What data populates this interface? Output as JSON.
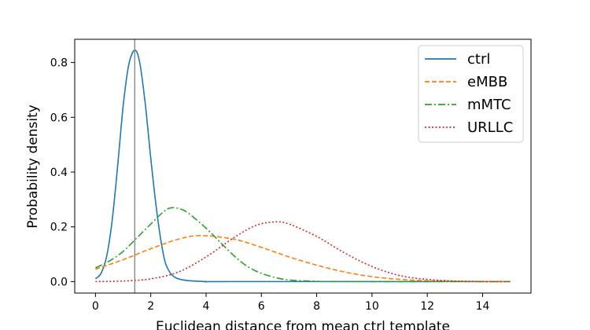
{
  "chart_data": {
    "type": "line",
    "xlabel": "Euclidean distance from mean ctrl template",
    "ylabel": "Probability density",
    "xlim": [
      -0.75,
      15.75
    ],
    "ylim": [
      -0.042,
      0.885
    ],
    "xticks": [
      0,
      2,
      4,
      6,
      8,
      10,
      12,
      14
    ],
    "yticks": [
      0.0,
      0.2,
      0.4,
      0.6,
      0.8
    ],
    "grid": false,
    "legend_position": "top-right",
    "vline": {
      "x": 1.42,
      "color": "#808080"
    },
    "series": [
      {
        "name": "ctrl",
        "color": "#1f77b4",
        "style": "solid",
        "x": [
          0,
          0.2,
          0.4,
          0.6,
          0.8,
          1.0,
          1.2,
          1.42,
          1.6,
          1.8,
          2.0,
          2.2,
          2.4,
          2.6,
          3.0,
          4,
          5,
          15
        ],
        "values": [
          0.01,
          0.03,
          0.09,
          0.22,
          0.42,
          0.64,
          0.79,
          0.845,
          0.8,
          0.65,
          0.45,
          0.27,
          0.13,
          0.05,
          0.01,
          0.0,
          0.0,
          0.0
        ]
      },
      {
        "name": "eMBB",
        "color": "#ff7f0e",
        "style": "dashed",
        "x": [
          0,
          1,
          2,
          3,
          3.8,
          5,
          6,
          7,
          8,
          9,
          10,
          11,
          12,
          13,
          15
        ],
        "values": [
          0.045,
          0.08,
          0.12,
          0.155,
          0.168,
          0.155,
          0.125,
          0.09,
          0.06,
          0.035,
          0.018,
          0.008,
          0.003,
          0.001,
          0.0
        ]
      },
      {
        "name": "mMTC",
        "color": "#2ca02c",
        "style": "dashdot",
        "x": [
          0,
          0.5,
          1,
          1.5,
          2,
          2.5,
          2.8,
          3.2,
          3.6,
          4,
          4.5,
          5,
          5.5,
          6,
          6.5,
          7,
          8,
          9,
          15
        ],
        "values": [
          0.05,
          0.075,
          0.11,
          0.16,
          0.21,
          0.258,
          0.27,
          0.26,
          0.23,
          0.195,
          0.145,
          0.095,
          0.055,
          0.03,
          0.015,
          0.006,
          0.001,
          0.0,
          0.0
        ]
      },
      {
        "name": "URLLC",
        "color": "#d62728",
        "style": "dotted",
        "x": [
          0,
          1,
          2,
          3,
          4,
          5,
          5.8,
          6.5,
          7,
          8,
          9,
          10,
          11,
          12,
          13,
          14,
          15
        ],
        "values": [
          0.0,
          0.002,
          0.01,
          0.035,
          0.09,
          0.16,
          0.205,
          0.218,
          0.21,
          0.165,
          0.105,
          0.055,
          0.022,
          0.008,
          0.002,
          0.0,
          0.0
        ]
      }
    ]
  }
}
